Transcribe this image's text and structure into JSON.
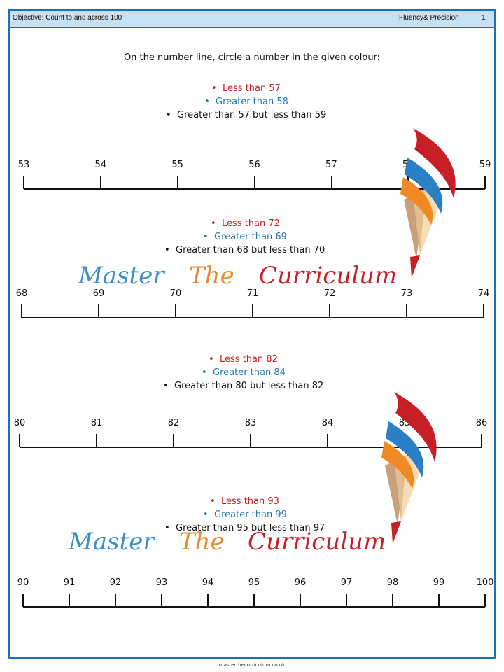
{
  "header": {
    "objective": "Objective: Count to and across 100",
    "strand": "Fluency& Precision",
    "page_number": "1"
  },
  "instruction": "On the number line, circle a number in the given colour:",
  "problems": [
    {
      "clues": [
        "Less than 57",
        "Greater than 58",
        "Greater than 57 but less than 59"
      ],
      "numbers": [
        "53",
        "54",
        "55",
        "56",
        "57",
        "58",
        "59"
      ]
    },
    {
      "clues": [
        "Less than 72",
        "Greater than 69",
        "Greater than 68 but less than 70"
      ],
      "numbers": [
        "68",
        "69",
        "70",
        "71",
        "72",
        "73",
        "74"
      ]
    },
    {
      "clues": [
        "Less than 82",
        "Greater than 84",
        "Greater than 80 but less than 82"
      ],
      "numbers": [
        "80",
        "81",
        "82",
        "83",
        "84",
        "85",
        "86"
      ]
    },
    {
      "clues": [
        "Less than 93",
        "Greater than 99",
        "Greater than 95 but less than 97"
      ],
      "numbers": [
        "90",
        "91",
        "92",
        "93",
        "94",
        "95",
        "96",
        "97",
        "98",
        "99",
        "100"
      ]
    }
  ],
  "logo": {
    "word1": "Master",
    "word2": "The",
    "word3": "Curriculum",
    "colors": {
      "word1": "#3b8fc7",
      "word2": "#e8892c",
      "word3": "#c61f26",
      "flame_red": "#c61f26",
      "flame_blue": "#2b7fc4",
      "flame_orange": "#f08a24"
    }
  },
  "footer": "masterthecurriculum.co.uk",
  "colors": {
    "red": "#c61f26",
    "blue": "#1f79b8",
    "border": "#1b6fbf",
    "header_bg": "#c9dff2"
  }
}
